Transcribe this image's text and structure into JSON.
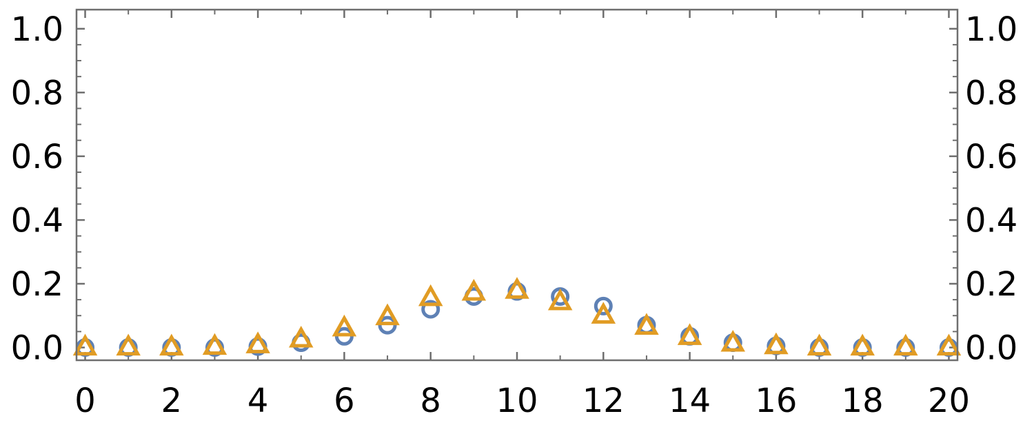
{
  "chart_data": {
    "type": "scatter",
    "title": "",
    "xlabel": "",
    "ylabel": "",
    "xlim": [
      -0.2,
      20.2
    ],
    "ylim": [
      -0.04,
      1.06
    ],
    "x_ticks": [
      0,
      2,
      4,
      6,
      8,
      10,
      12,
      14,
      16,
      18,
      20
    ],
    "x_tick_labels": [
      "0",
      "2",
      "4",
      "6",
      "8",
      "10",
      "12",
      "14",
      "16",
      "18",
      "20"
    ],
    "y_ticks": [
      0.0,
      0.2,
      0.4,
      0.6,
      0.8,
      1.0
    ],
    "y_tick_labels": [
      "0.0",
      "0.2",
      "0.4",
      "0.6",
      "0.8",
      "1.0"
    ],
    "right_axis_labels": true,
    "grid": false,
    "legend": "none",
    "series": [
      {
        "marker": "circle-open",
        "color": "#5e81b5",
        "x": [
          0,
          1,
          2,
          3,
          4,
          5,
          6,
          7,
          8,
          9,
          10,
          11,
          12,
          13,
          14,
          15,
          16,
          17,
          18,
          19,
          20
        ],
        "values": [
          0.0,
          0.0,
          0.0,
          0.0,
          0.003,
          0.015,
          0.035,
          0.07,
          0.12,
          0.16,
          0.176,
          0.16,
          0.13,
          0.07,
          0.035,
          0.015,
          0.005,
          0.0,
          0.0,
          0.0,
          0.0
        ]
      },
      {
        "marker": "triangle-open",
        "color": "#e19c24",
        "x": [
          0,
          1,
          2,
          3,
          4,
          5,
          6,
          7,
          8,
          9,
          10,
          11,
          12,
          13,
          14,
          15,
          16,
          17,
          18,
          19,
          20
        ],
        "values": [
          0.0,
          0.0,
          0.0,
          0.002,
          0.007,
          0.025,
          0.06,
          0.095,
          0.155,
          0.172,
          0.178,
          0.142,
          0.1,
          0.065,
          0.033,
          0.012,
          0.004,
          0.0,
          0.0,
          0.0,
          0.0
        ]
      }
    ]
  }
}
